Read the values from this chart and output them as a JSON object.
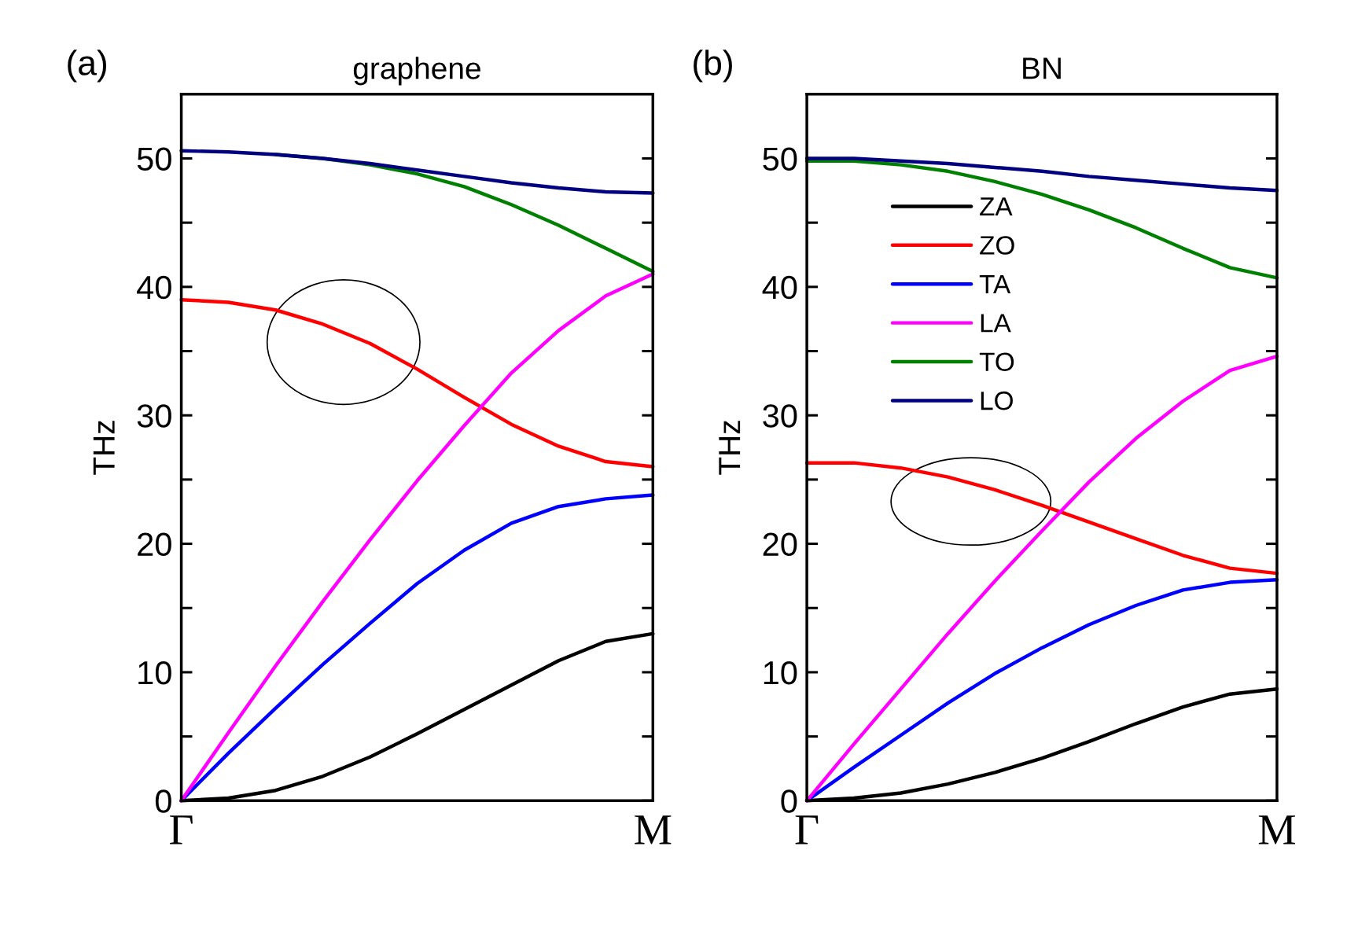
{
  "chart_data": [
    {
      "type": "line",
      "title": "graphene",
      "ylabel": "THz",
      "annotations": [
        "(a)"
      ],
      "categories": [
        "Γ",
        null,
        null,
        null,
        null,
        null,
        null,
        null,
        null,
        null,
        "M"
      ],
      "ylim": [
        0,
        55
      ],
      "yticks": [
        0,
        {
          "value": 5,
          "label": null
        },
        10,
        {
          "value": 15,
          "label": null
        },
        20,
        {
          "value": 25,
          "label": null
        },
        30,
        {
          "value": 35,
          "label": null
        },
        40,
        {
          "value": 45,
          "label": null
        },
        50
      ],
      "grid": false,
      "legend": false,
      "series": [
        {
          "color": "#000000",
          "values": [
            0,
            0.2,
            0.8,
            1.9,
            3.4,
            5.2,
            7.1,
            9.0,
            10.9,
            12.4,
            13.0
          ]
        },
        {
          "color": "#ff0000",
          "values": [
            39.0,
            38.8,
            38.2,
            37.1,
            35.6,
            33.6,
            31.4,
            29.3,
            27.6,
            26.4,
            26.0
          ]
        },
        {
          "color": "#0000ff",
          "values": [
            0,
            3.7,
            7.2,
            10.6,
            13.8,
            16.9,
            19.5,
            21.6,
            22.9,
            23.5,
            23.8
          ]
        },
        {
          "color": "#ff00ff",
          "values": [
            0,
            5.3,
            10.5,
            15.5,
            20.3,
            24.9,
            29.2,
            33.3,
            36.6,
            39.3,
            41.0
          ]
        },
        {
          "color": "#008000",
          "values": [
            null,
            null,
            50.3,
            50.0,
            49.5,
            48.8,
            47.8,
            46.4,
            44.8,
            43.0,
            41.2
          ]
        },
        {
          "color": "#000080",
          "values": [
            50.6,
            50.5,
            50.3,
            50.0,
            49.6,
            49.1,
            48.6,
            48.1,
            47.7,
            47.4,
            47.3
          ]
        }
      ]
    },
    {
      "type": "line",
      "title": "BN",
      "ylabel": "THz",
      "annotations": [
        "(b)"
      ],
      "categories": [
        "Γ",
        null,
        null,
        null,
        null,
        null,
        null,
        null,
        null,
        null,
        "M"
      ],
      "ylim": [
        0,
        55
      ],
      "yticks": [
        0,
        {
          "value": 5,
          "label": null
        },
        10,
        {
          "value": 15,
          "label": null
        },
        20,
        {
          "value": 25,
          "label": null
        },
        30,
        {
          "value": 35,
          "label": null
        },
        40,
        {
          "value": 45,
          "label": null
        },
        50
      ],
      "grid": false,
      "legend": "top left",
      "series": [
        {
          "name": "ZA",
          "color": "#000000",
          "values": [
            0,
            0.2,
            0.6,
            1.3,
            2.2,
            3.3,
            4.6,
            6.0,
            7.3,
            8.3,
            8.7
          ]
        },
        {
          "name": "ZO",
          "color": "#ff0000",
          "values": [
            26.3,
            26.3,
            25.9,
            25.2,
            24.2,
            23.0,
            21.7,
            20.4,
            19.1,
            18.1,
            17.7
          ]
        },
        {
          "name": "TA",
          "color": "#0000ff",
          "values": [
            0,
            2.6,
            5.1,
            7.6,
            9.9,
            11.9,
            13.7,
            15.2,
            16.4,
            17.0,
            17.2
          ]
        },
        {
          "name": "LA",
          "color": "#ff00ff",
          "values": [
            0,
            4.4,
            8.7,
            13.0,
            17.1,
            21.0,
            24.8,
            28.2,
            31.1,
            33.5,
            34.6
          ]
        },
        {
          "name": "TO",
          "color": "#008000",
          "values": [
            49.8,
            49.8,
            49.5,
            49.0,
            48.2,
            47.2,
            46.0,
            44.6,
            43.0,
            41.5,
            40.7
          ]
        },
        {
          "name": "LO",
          "color": "#000080",
          "values": [
            50.0,
            50.0,
            49.8,
            49.6,
            49.3,
            49.0,
            48.6,
            48.3,
            48.0,
            47.7,
            47.5
          ]
        }
      ]
    }
  ]
}
